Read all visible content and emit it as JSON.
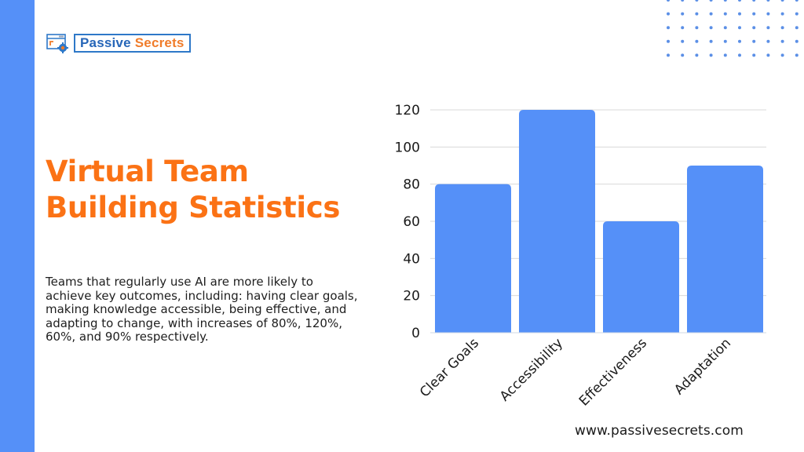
{
  "brand": {
    "logo_word1": "Passive",
    "logo_word2": "Secrets",
    "url": "www.passivesecrets.com",
    "colors": {
      "accent_blue": "#5590f8",
      "title_orange": "#fb7215",
      "logo_blue": "#2666b8",
      "logo_orange": "#f07c2a",
      "dot_color": "#5b8fe6"
    }
  },
  "header": {
    "title_line1": "Virtual Team",
    "title_line2": "Building Statistics"
  },
  "description": "Teams that regularly use AI are more likely to achieve key outcomes, including: having clear goals, making knowledge accessible, being effective, and adapting to change, with increases of 80%, 120%, 60%, and 90% respectively.",
  "chart_data": {
    "type": "bar",
    "title": "",
    "xlabel": "",
    "ylabel": "",
    "categories": [
      "Clear Goals",
      "Accessibility",
      "Effectiveness",
      "Adaptation"
    ],
    "values": [
      80,
      120,
      60,
      90
    ],
    "ylim": [
      0,
      120
    ],
    "yticks": [
      0,
      20,
      40,
      60,
      80,
      100,
      120
    ],
    "grid": true,
    "legend": "none",
    "bar_color": "#5590f8",
    "x_label_rotation": -45
  }
}
